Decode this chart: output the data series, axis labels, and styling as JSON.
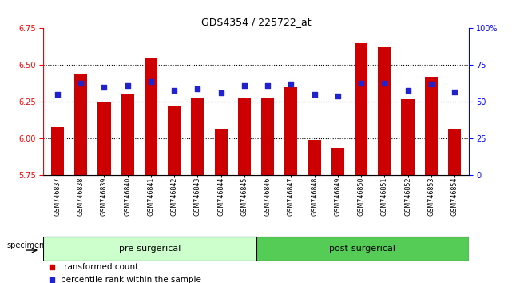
{
  "title": "GDS4354 / 225722_at",
  "samples": [
    "GSM746837",
    "GSM746838",
    "GSM746839",
    "GSM746840",
    "GSM746841",
    "GSM746842",
    "GSM746843",
    "GSM746844",
    "GSM746845",
    "GSM746846",
    "GSM746847",
    "GSM746848",
    "GSM746849",
    "GSM746850",
    "GSM746851",
    "GSM746852",
    "GSM746853",
    "GSM746854"
  ],
  "bar_values": [
    6.08,
    6.44,
    6.25,
    6.3,
    6.55,
    6.22,
    6.28,
    6.07,
    6.28,
    6.28,
    6.35,
    5.99,
    5.94,
    6.65,
    6.62,
    6.27,
    6.42,
    6.07
  ],
  "percentile_values": [
    55,
    63,
    60,
    61,
    64,
    58,
    59,
    56,
    61,
    61,
    62,
    55,
    54,
    63,
    63,
    58,
    62,
    57
  ],
  "bar_bottom": 5.75,
  "ylim_left": [
    5.75,
    6.75
  ],
  "ylim_right": [
    0,
    100
  ],
  "yticks_left": [
    5.75,
    6.0,
    6.25,
    6.5,
    6.75
  ],
  "yticks_right": [
    0,
    25,
    50,
    75,
    100
  ],
  "ytick_labels_right": [
    "0",
    "25",
    "50",
    "75",
    "100%"
  ],
  "bar_color": "#cc0000",
  "dot_color": "#2222cc",
  "pre_surgical_count": 9,
  "post_surgical_count": 9,
  "pre_color": "#ccffcc",
  "post_color": "#55cc55",
  "group_label_pre": "pre-surgerical",
  "group_label_post": "post-surgerical",
  "specimen_label": "specimen",
  "legend_bar": "transformed count",
  "legend_dot": "percentile rank within the sample",
  "xtick_bg": "#c8c8c8",
  "title_fontsize": 9,
  "tick_fontsize": 7,
  "label_fontsize": 7.5,
  "group_fontsize": 8,
  "legend_fontsize": 7.5
}
